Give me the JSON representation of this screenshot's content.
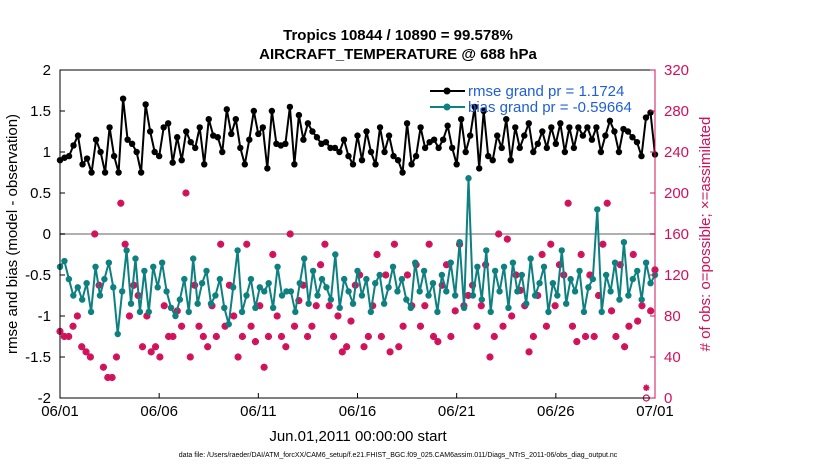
{
  "chart_data": {
    "type": "line",
    "title": "Tropics 10844 / 10890 = 99.578%",
    "subtitle": "AIRCRAFT_TEMPERATURE @ 688 hPa",
    "xlabel": "Jun.01,2011 00:00:00 start",
    "ylabel": "rmse and bias (model - observation)",
    "ylabel_right": "# of obs: o=possible; ×=assimilated",
    "footnote": "data file: /Users/raeder/DAI/ATM_forcXX/CAM6_setup/f.e21.FHIST_BGC.f09_025.CAM6assim.011/Diags_NTrS_2011-06/obs_diag_output.nc",
    "xlim": [
      0,
      30
    ],
    "ylim": [
      -2,
      2
    ],
    "ylim_right": [
      0,
      320
    ],
    "x_ticks": [
      0,
      5,
      10,
      15,
      20,
      25,
      30
    ],
    "x_tick_labels": [
      "06/01",
      "06/06",
      "06/11",
      "06/16",
      "06/21",
      "06/26",
      "07/01"
    ],
    "y_ticks": [
      -2,
      -1.5,
      -1,
      -0.5,
      0,
      0.5,
      1,
      1.5,
      2
    ],
    "y_tick_labels": [
      "-2",
      "-1.5",
      "-1",
      "-0.5",
      "0",
      "0.5",
      "1",
      "1.5",
      "2"
    ],
    "y_ticks_right": [
      0,
      40,
      80,
      120,
      160,
      200,
      240,
      280,
      320
    ],
    "y_tick_labels_right": [
      "0",
      "40",
      "80",
      "120",
      "160",
      "200",
      "240",
      "280",
      "320"
    ],
    "colors": {
      "rmse": "#000000",
      "bias": "#0e8080",
      "obs": "#d1105a",
      "zero": "#b0b0b0",
      "legend_text": "#1f5fd6"
    },
    "series": [
      {
        "name": "rmse grand pr = 1.1724",
        "key": "rmse",
        "values": [
          0.9,
          0.93,
          0.95,
          1.08,
          1.2,
          0.85,
          0.92,
          0.75,
          1.15,
          1.0,
          0.75,
          1.3,
          0.95,
          0.75,
          1.65,
          1.15,
          1.1,
          1.0,
          0.75,
          1.58,
          1.25,
          1.0,
          0.95,
          1.3,
          1.35,
          0.87,
          1.18,
          0.9,
          1.25,
          1.12,
          1.05,
          1.3,
          0.85,
          1.4,
          1.2,
          1.18,
          1.0,
          1.52,
          1.22,
          1.4,
          1.05,
          0.85,
          1.15,
          1.5,
          1.22,
          1.3,
          0.8,
          1.5,
          1.1,
          1.08,
          1.1,
          1.55,
          0.85,
          1.45,
          1.15,
          1.35,
          1.25,
          1.18,
          1.1,
          1.12,
          1.05,
          1.05,
          1.0,
          1.15,
          0.95,
          0.85,
          1.2,
          0.9,
          1.25,
          1.0,
          0.85,
          1.3,
          1.0,
          1.2,
          0.95,
          0.9,
          0.75,
          1.35,
          0.85,
          0.95,
          1.3,
          1.05,
          1.12,
          1.15,
          1.05,
          1.15,
          1.32,
          1.05,
          0.85,
          1.4,
          1.0,
          1.2,
          1.55,
          0.8,
          1.5,
          0.95,
          0.9,
          1.2,
          1.05,
          1.4,
          0.9,
          1.3,
          1.05,
          1.2,
          1.35,
          1.0,
          1.1,
          1.25,
          1.05,
          1.3,
          1.1,
          1.35,
          1.0,
          1.3,
          1.05,
          1.3,
          1.2,
          1.3,
          1.15,
          1.3,
          1.0,
          1.2,
          1.38,
          1.25,
          1.0,
          1.28,
          1.25,
          1.18,
          1.12,
          0.95,
          1.42,
          1.48,
          0.97
        ]
      },
      {
        "name": "bias grand pr = -0.59664",
        "key": "bias",
        "values": [
          -0.4,
          -0.33,
          -0.55,
          -0.75,
          -0.65,
          -0.8,
          -0.6,
          -0.95,
          -0.4,
          -0.75,
          -0.55,
          -0.35,
          -0.65,
          -1.22,
          -0.7,
          -0.2,
          -0.85,
          -0.3,
          -0.95,
          -0.45,
          -0.95,
          -0.4,
          -0.65,
          -0.35,
          -0.7,
          -0.9,
          -1.0,
          -0.8,
          -0.55,
          -0.95,
          -0.3,
          -0.85,
          -0.6,
          -0.45,
          -0.85,
          -0.75,
          -0.55,
          -0.9,
          -1.1,
          -0.65,
          -0.2,
          -0.95,
          -0.75,
          -0.55,
          -0.9,
          -0.65,
          -0.7,
          -0.6,
          -0.9,
          -0.4,
          -0.75,
          -0.7,
          -0.7,
          -0.95,
          -0.6,
          -0.3,
          -0.85,
          -0.45,
          -0.75,
          -0.55,
          -0.65,
          -0.8,
          -0.25,
          -0.9,
          -0.55,
          -0.7,
          -0.85,
          -0.45,
          -0.75,
          -0.55,
          -0.95,
          -0.6,
          -0.5,
          -0.85,
          -0.65,
          -0.4,
          -0.7,
          -0.55,
          -0.8,
          -0.9,
          -0.35,
          -0.7,
          -0.45,
          -0.75,
          -0.6,
          -0.95,
          -0.5,
          -0.7,
          -0.35,
          -0.75,
          -0.1,
          -0.9,
          0.68,
          -0.75,
          -0.4,
          -0.8,
          -0.2,
          -0.95,
          -0.45,
          -0.7,
          -0.4,
          -0.9,
          -0.35,
          -0.7,
          -0.5,
          -0.85,
          -0.3,
          -0.75,
          -0.6,
          -0.4,
          -0.95,
          -0.6,
          -0.75,
          -0.2,
          -0.85,
          -0.55,
          -0.7,
          -0.45,
          -0.95,
          -0.65,
          -0.55,
          0.3,
          -0.95,
          -0.5,
          -0.7,
          -0.35,
          -0.8,
          -0.1,
          -0.75,
          -0.55,
          -0.45,
          -0.8,
          -0.35,
          -0.6,
          -0.5
        ]
      }
    ],
    "obs_assimilated": [
      65,
      60,
      60,
      70,
      80,
      50,
      45,
      40,
      160,
      110,
      30,
      20,
      20,
      40,
      190,
      150,
      80,
      110,
      100,
      50,
      80,
      45,
      50,
      40,
      90,
      60,
      60,
      85,
      70,
      200,
      40,
      110,
      70,
      60,
      50,
      90,
      60,
      150,
      70,
      110,
      80,
      40,
      60,
      150,
      70,
      55,
      90,
      30,
      60,
      140,
      80,
      60,
      50,
      160,
      70,
      95,
      110,
      60,
      70,
      90,
      130,
      150,
      90,
      60,
      80,
      45,
      50,
      75,
      110,
      120,
      50,
      60,
      90,
      140,
      60,
      120,
      45,
      150,
      50,
      70,
      120,
      90,
      130,
      70,
      90,
      150,
      60,
      55,
      110,
      130,
      60,
      85,
      150,
      90,
      100,
      110,
      70,
      90,
      130,
      40,
      60,
      160,
      70,
      155,
      80,
      120,
      105,
      90,
      45,
      60,
      100,
      140,
      70,
      150,
      90,
      130,
      120,
      190,
      70,
      55,
      140,
      60,
      120,
      60,
      100,
      150,
      190,
      85,
      60,
      130,
      50,
      70,
      140,
      75,
      90,
      10,
      85,
      125
    ],
    "obs_possible": [
      65,
      60,
      60,
      70,
      80,
      50,
      45,
      40,
      160,
      110,
      30,
      20,
      20,
      40,
      190,
      150,
      80,
      110,
      100,
      50,
      80,
      45,
      50,
      40,
      90,
      60,
      60,
      85,
      70,
      200,
      40,
      110,
      70,
      60,
      50,
      90,
      60,
      150,
      70,
      110,
      80,
      40,
      60,
      150,
      70,
      55,
      90,
      30,
      60,
      140,
      80,
      60,
      50,
      160,
      70,
      95,
      110,
      60,
      70,
      90,
      130,
      150,
      90,
      60,
      80,
      45,
      50,
      75,
      110,
      120,
      50,
      60,
      90,
      140,
      60,
      120,
      45,
      150,
      50,
      70,
      120,
      90,
      130,
      70,
      90,
      150,
      60,
      55,
      110,
      130,
      60,
      85,
      150,
      90,
      100,
      110,
      70,
      90,
      130,
      40,
      60,
      160,
      70,
      155,
      80,
      120,
      105,
      90,
      45,
      60,
      100,
      140,
      70,
      150,
      90,
      130,
      120,
      190,
      70,
      55,
      140,
      60,
      120,
      60,
      100,
      150,
      190,
      85,
      60,
      130,
      50,
      70,
      140,
      75,
      90,
      0,
      85,
      125
    ]
  }
}
